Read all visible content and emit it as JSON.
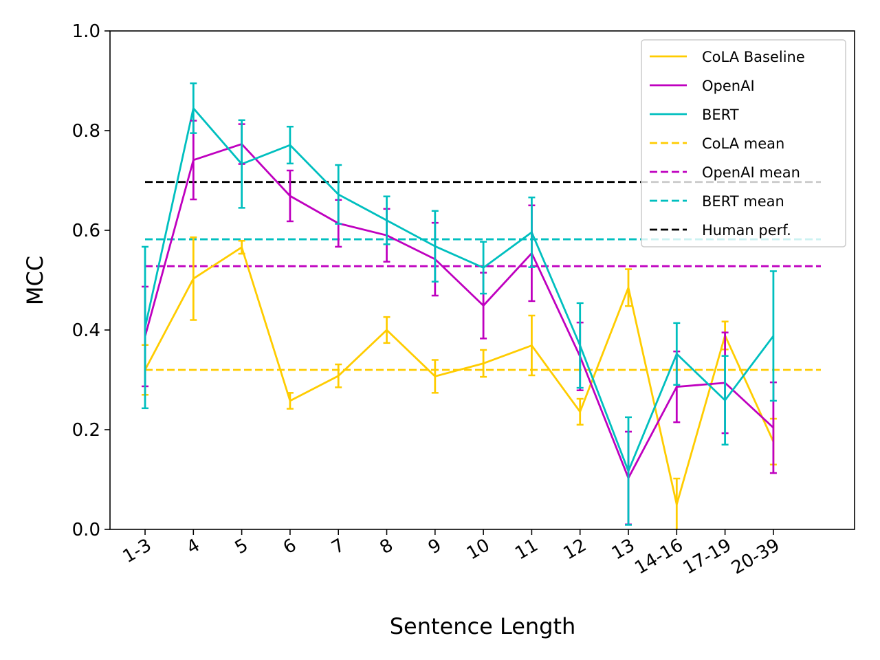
{
  "chart_data": {
    "type": "line",
    "xlabel": "Sentence Length",
    "ylabel": "MCC",
    "ylim": [
      0,
      1.0
    ],
    "yticks": [
      "0.0",
      "0.2",
      "0.4",
      "0.6",
      "0.8",
      "1.0"
    ],
    "categories": [
      "1-3",
      "4",
      "5",
      "6",
      "7",
      "8",
      "9",
      "10",
      "11",
      "12",
      "13",
      "14-16",
      "17-19",
      "20-39"
    ],
    "grid": false,
    "legend_position": "top-right",
    "series": [
      {
        "name": "CoLA Baseline",
        "color": "#ffcc00",
        "style": "solid",
        "values": [
          0.32,
          0.503,
          0.566,
          0.258,
          0.308,
          0.4,
          0.307,
          0.333,
          0.369,
          0.236,
          0.485,
          0.05,
          0.389,
          0.176
        ],
        "errors": [
          0.05,
          0.083,
          0.013,
          0.016,
          0.023,
          0.026,
          0.033,
          0.027,
          0.06,
          0.026,
          0.037,
          0.052,
          0.028,
          0.046
        ]
      },
      {
        "name": "OpenAI",
        "color": "#bf00bf",
        "style": "solid",
        "values": [
          0.387,
          0.741,
          0.773,
          0.669,
          0.614,
          0.59,
          0.542,
          0.449,
          0.554,
          0.347,
          0.103,
          0.286,
          0.294,
          0.204
        ],
        "errors": [
          0.1,
          0.079,
          0.04,
          0.051,
          0.047,
          0.053,
          0.073,
          0.066,
          0.096,
          0.068,
          0.093,
          0.071,
          0.101,
          0.091
        ]
      },
      {
        "name": "BERT",
        "color": "#00bfbf",
        "style": "solid",
        "values": [
          0.405,
          0.845,
          0.733,
          0.771,
          0.672,
          0.62,
          0.568,
          0.525,
          0.596,
          0.369,
          0.117,
          0.352,
          0.259,
          0.388
        ],
        "errors": [
          0.162,
          0.05,
          0.088,
          0.037,
          0.059,
          0.048,
          0.071,
          0.052,
          0.07,
          0.085,
          0.108,
          0.062,
          0.089,
          0.13
        ]
      },
      {
        "name": "CoLA mean",
        "color": "#ffcc00",
        "style": "dashed",
        "mean": 0.32
      },
      {
        "name": "OpenAI mean",
        "color": "#bf00bf",
        "style": "dashed",
        "mean": 0.528
      },
      {
        "name": "BERT mean",
        "color": "#00bfbf",
        "style": "dashed",
        "mean": 0.582
      },
      {
        "name": "Human perf.",
        "color": "#000000",
        "style": "dashed",
        "mean": 0.697
      }
    ]
  }
}
